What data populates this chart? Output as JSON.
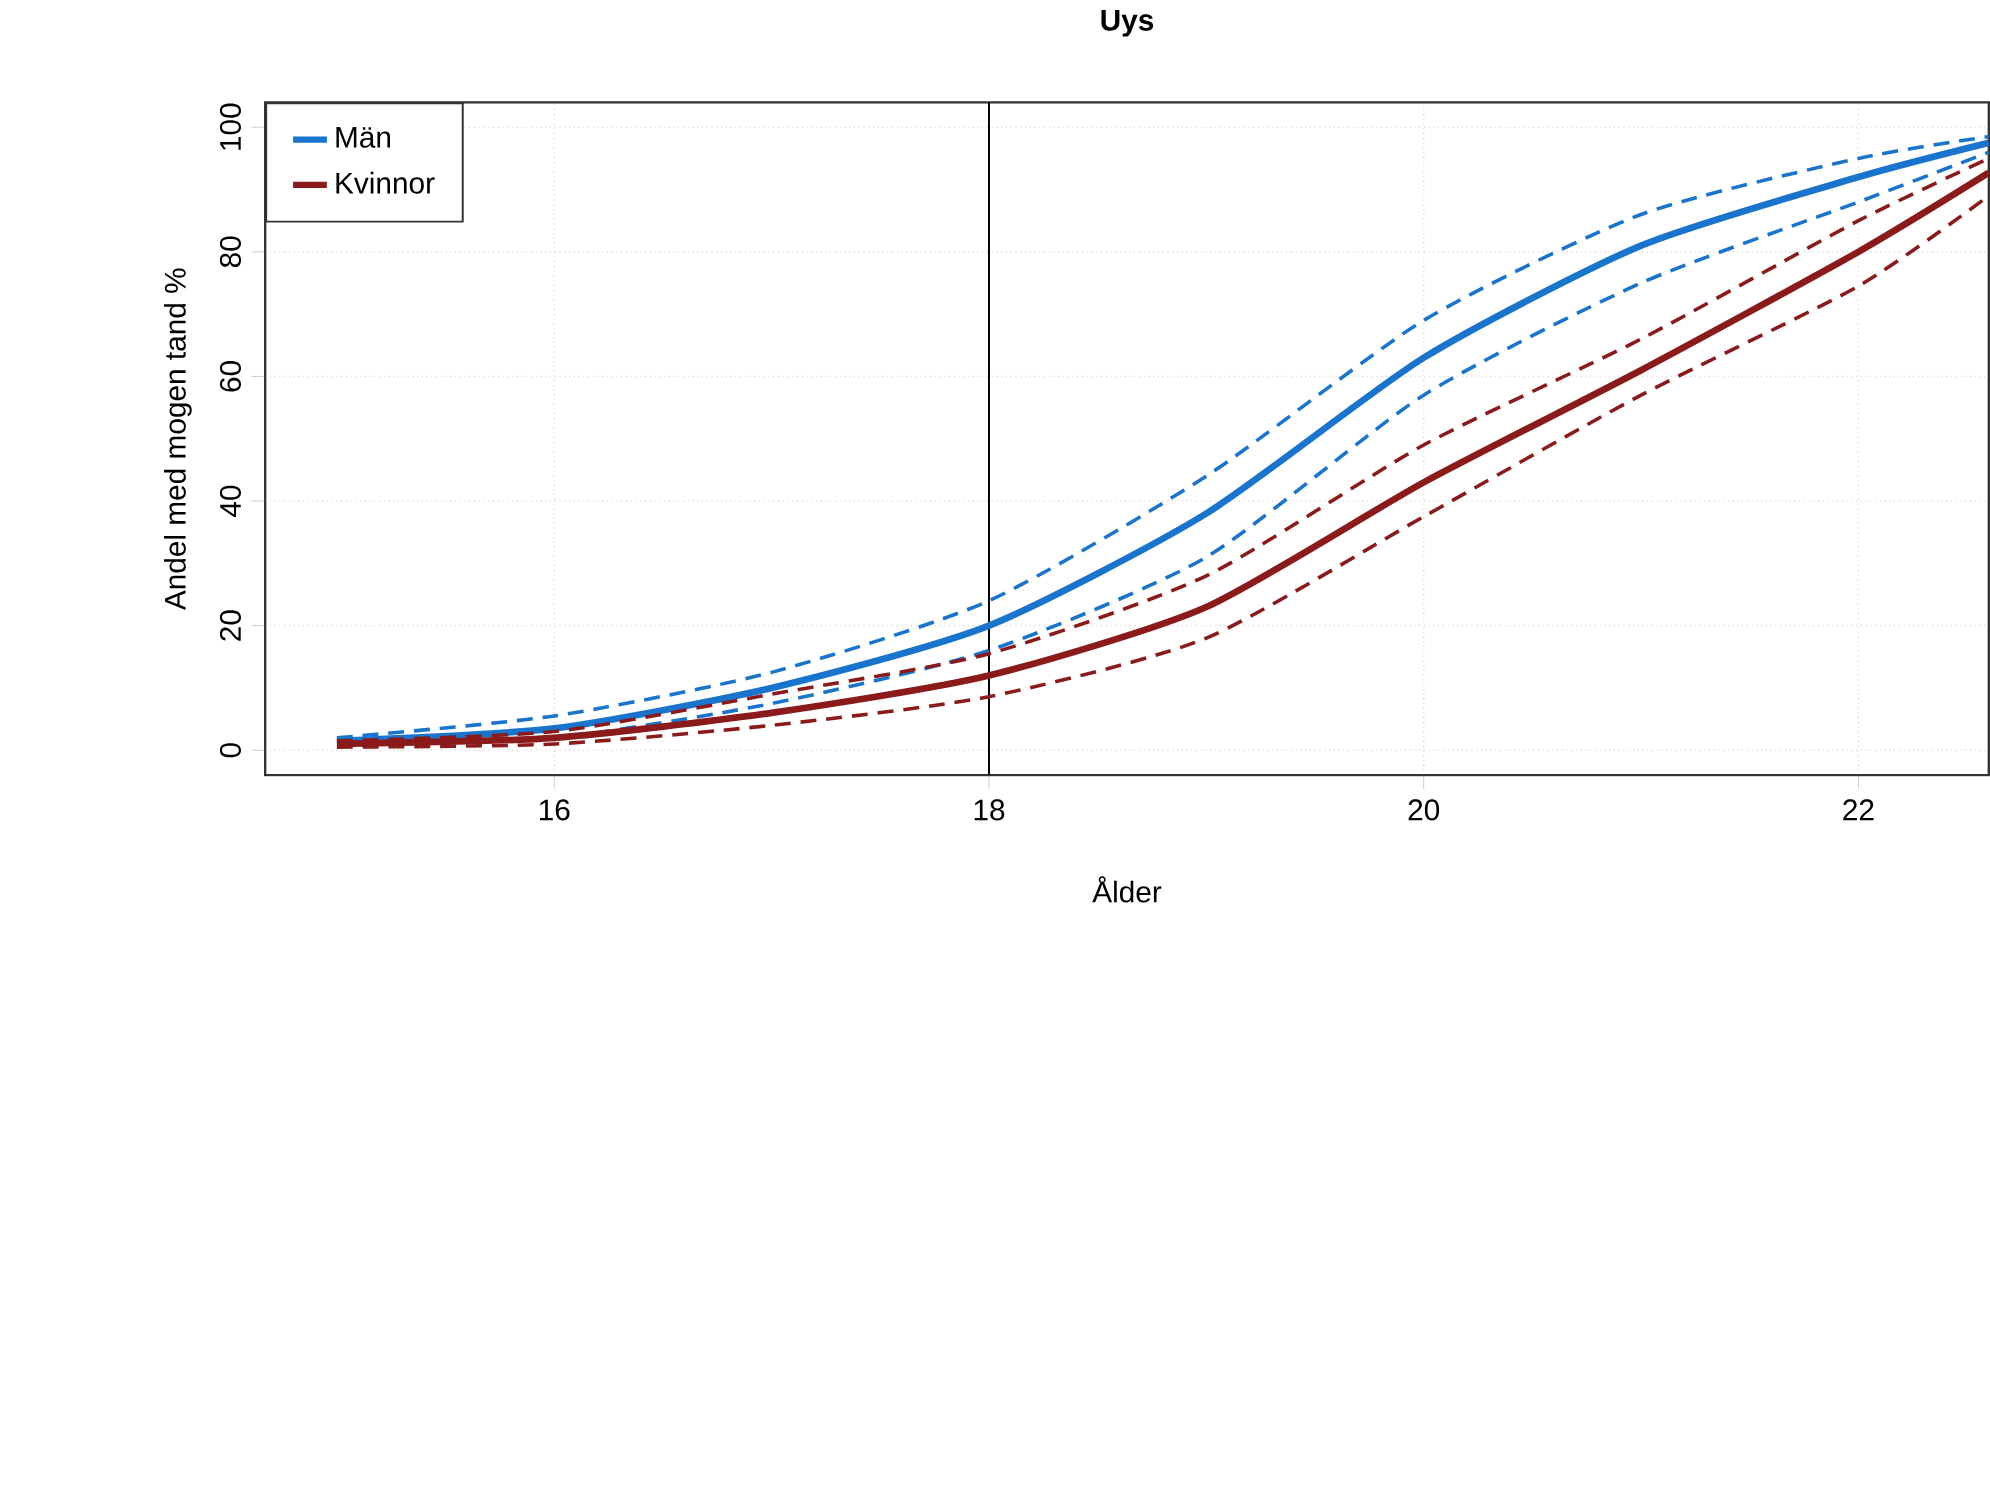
{
  "chart_data": {
    "type": "line",
    "title": "Uys",
    "xlabel": "Ålder",
    "ylabel": "Andel med mogen tand %",
    "x": [
      15,
      16,
      17,
      18,
      19,
      20,
      21,
      22,
      22.6
    ],
    "series": [
      {
        "name": "Män",
        "color": "#1874cd",
        "line_style": "solid",
        "values": [
          1.5,
          3.5,
          10,
          20,
          38,
          63,
          81,
          92,
          97.5
        ]
      },
      {
        "color": "#1874cd",
        "line_style": "dashed",
        "values": [
          2,
          5.5,
          12.5,
          24,
          44,
          69,
          86,
          95,
          98.5
        ]
      },
      {
        "color": "#1874cd",
        "line_style": "dashed",
        "values": [
          1,
          2,
          7.5,
          16,
          31,
          57,
          75,
          88,
          96
        ]
      },
      {
        "name": "Kvinnor",
        "color": "#8b1a1a",
        "line_style": "solid",
        "values": [
          1,
          2,
          6,
          12,
          23,
          43,
          61,
          80,
          92.7
        ]
      },
      {
        "color": "#8b1a1a",
        "line_style": "dashed",
        "values": [
          1.5,
          3,
          9,
          15.5,
          28,
          49,
          66,
          85,
          95
        ]
      },
      {
        "color": "#8b1a1a",
        "line_style": "dashed",
        "values": [
          0.5,
          1,
          4,
          8.6,
          18,
          37.5,
          57,
          74.5,
          89
        ]
      }
    ],
    "xlim": [
      14.67,
      22.6
    ],
    "ylim": [
      -4,
      104
    ],
    "xticks": [
      16,
      18,
      20,
      22
    ],
    "yticks": [
      0,
      20,
      40,
      60,
      80,
      100
    ],
    "grid": true,
    "legend": "top left",
    "marker": "none",
    "ref_lines": [
      {
        "axis": "x",
        "value": 18,
        "color": "#000000"
      }
    ]
  }
}
